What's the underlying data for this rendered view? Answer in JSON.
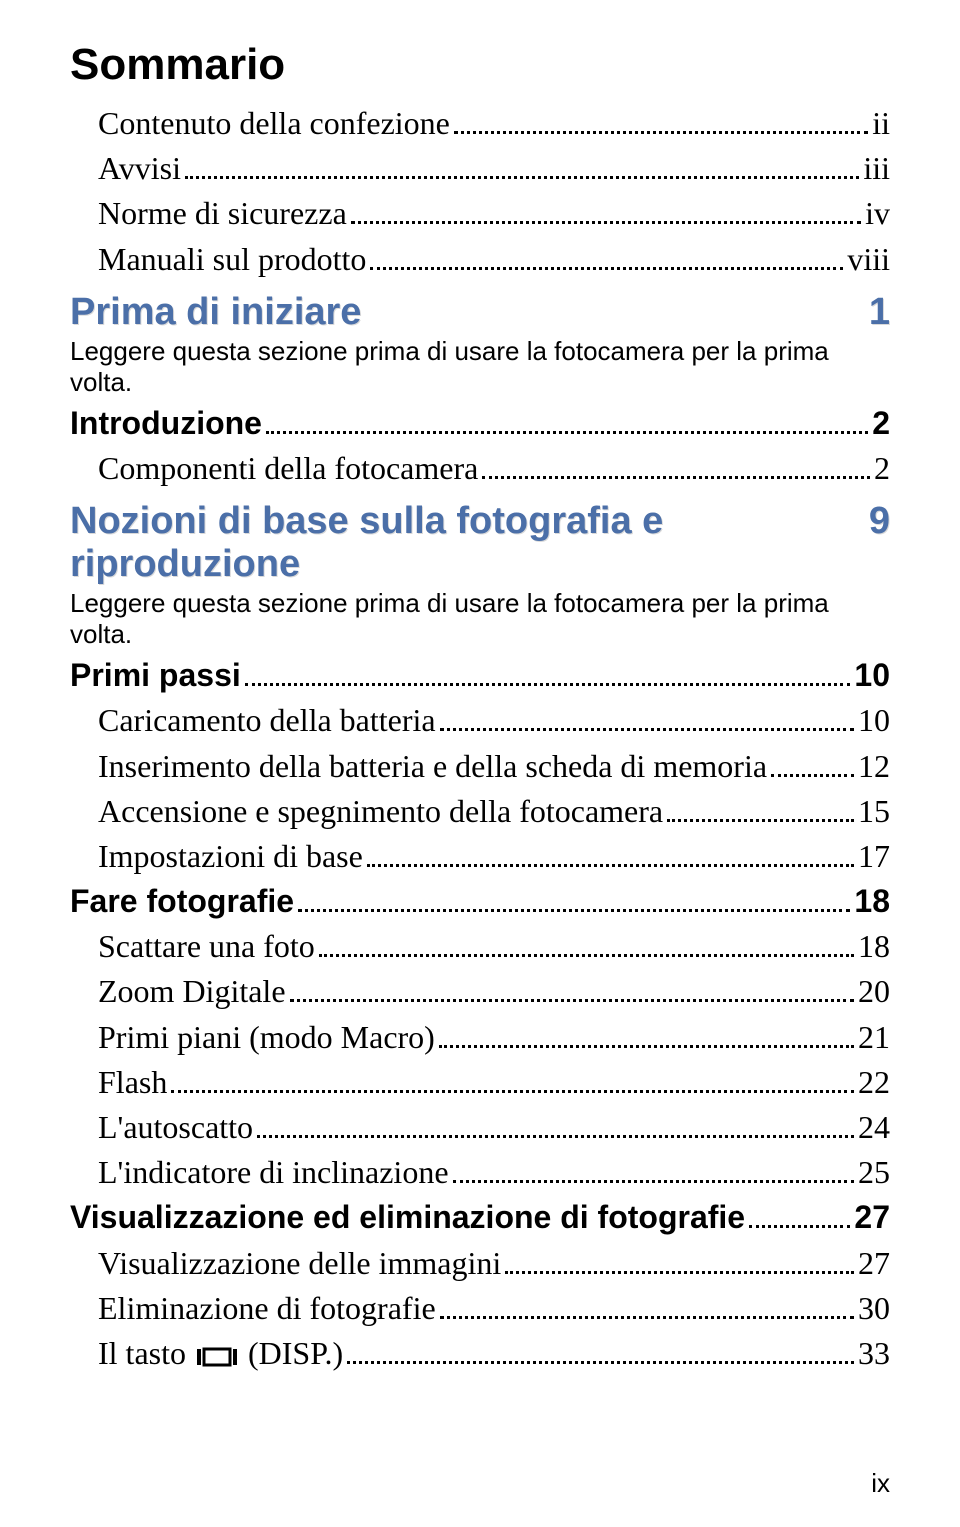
{
  "title": "Sommario",
  "intro_items": [
    {
      "label": "Contenuto della confezione",
      "page": "ii",
      "indent": 1
    },
    {
      "label": "Avvisi",
      "page": "iii",
      "indent": 1
    },
    {
      "label": "Norme di sicurezza",
      "page": "iv",
      "indent": 1
    },
    {
      "label": "Manuali sul prodotto",
      "page": "viii",
      "indent": 1
    }
  ],
  "chapters": [
    {
      "title": "Prima di iniziare",
      "page": "1",
      "subtitle": "Leggere questa sezione prima di usare la fotocamera per la prima volta.",
      "items": [
        {
          "label": "Introduzione",
          "page": "2",
          "indent": 0,
          "bold": true
        },
        {
          "label": "Componenti della fotocamera",
          "page": "2",
          "indent": 1
        }
      ]
    },
    {
      "title": "Nozioni di base sulla fotografia e riproduzione",
      "page": "9",
      "subtitle": "Leggere questa sezione prima di usare la fotocamera per la prima volta.",
      "items": [
        {
          "label": "Primi passi",
          "page": "10",
          "indent": 0,
          "bold": true
        },
        {
          "label": "Caricamento della batteria",
          "page": "10",
          "indent": 1
        },
        {
          "label": "Inserimento della batteria e della scheda di memoria",
          "page": "12",
          "indent": 1
        },
        {
          "label": "Accensione e spegnimento della fotocamera",
          "page": "15",
          "indent": 1
        },
        {
          "label": "Impostazioni di base",
          "page": "17",
          "indent": 1
        },
        {
          "label": "Fare fotografie",
          "page": "18",
          "indent": 0,
          "bold": true
        },
        {
          "label": "Scattare una foto",
          "page": "18",
          "indent": 1
        },
        {
          "label": "Zoom Digitale",
          "page": "20",
          "indent": 1
        },
        {
          "label": "Primi piani (modo Macro)",
          "page": "21",
          "indent": 1
        },
        {
          "label": "Flash",
          "page": "22",
          "indent": 1
        },
        {
          "label": "L'autoscatto",
          "page": "24",
          "indent": 1
        },
        {
          "label": "L'indicatore di inclinazione",
          "page": "25",
          "indent": 1
        },
        {
          "label": "Visualizzazione ed eliminazione di fotografie",
          "page": "27",
          "indent": 0,
          "bold": true
        },
        {
          "label": "Visualizzazione delle immagini",
          "page": "27",
          "indent": 1
        },
        {
          "label": "Eliminazione di fotografie",
          "page": "30",
          "indent": 1
        },
        {
          "label": "Il tasto ",
          "page": "33",
          "indent": 1,
          "disp_suffix": " (DISP.)",
          "has_icon": true
        }
      ]
    }
  ],
  "footer_page": "ix",
  "colors": {
    "chapter_color": "#4b6fa8",
    "text_color": "#000000",
    "bg": "#ffffff"
  }
}
